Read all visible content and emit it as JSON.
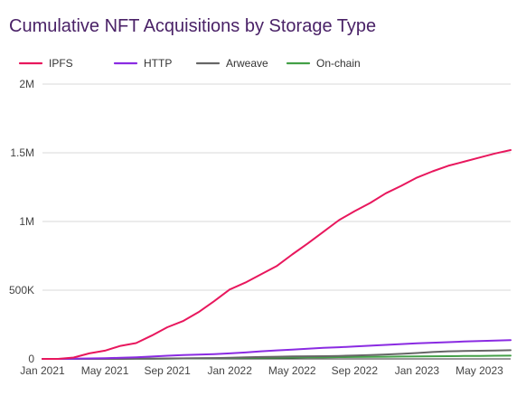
{
  "chart_data": {
    "type": "line",
    "title": "Cumulative NFT Acquisitions by Storage Type",
    "xlabel": "",
    "ylabel": "",
    "ylim": [
      0,
      2000000
    ],
    "y_ticks": [
      {
        "value": 0,
        "label": "0"
      },
      {
        "value": 500000,
        "label": "500K"
      },
      {
        "value": 1000000,
        "label": "1M"
      },
      {
        "value": 1500000,
        "label": "1.5M"
      },
      {
        "value": 2000000,
        "label": "2M"
      }
    ],
    "x_ticks": [
      "Jan 2021",
      "May 2021",
      "Sep 2021",
      "Jan 2022",
      "May 2022",
      "Sep 2022",
      "Jan 2023",
      "May 2023"
    ],
    "x": [
      "Jan 2021",
      "Feb 2021",
      "Mar 2021",
      "Apr 2021",
      "May 2021",
      "Jun 2021",
      "Jul 2021",
      "Aug 2021",
      "Sep 2021",
      "Oct 2021",
      "Nov 2021",
      "Dec 2021",
      "Jan 2022",
      "Feb 2022",
      "Mar 2022",
      "Apr 2022",
      "May 2022",
      "Jun 2022",
      "Jul 2022",
      "Aug 2022",
      "Sep 2022",
      "Oct 2022",
      "Nov 2022",
      "Dec 2022",
      "Jan 2023",
      "Feb 2023",
      "Mar 2023",
      "Apr 2023",
      "May 2023",
      "Jun 2023",
      "Jul 2023"
    ],
    "series": [
      {
        "name": "IPFS",
        "color": "#e8175d",
        "values": [
          0,
          0,
          10000,
          40000,
          60000,
          95000,
          115000,
          170000,
          230000,
          275000,
          340000,
          420000,
          505000,
          555000,
          615000,
          675000,
          760000,
          840000,
          925000,
          1010000,
          1075000,
          1135000,
          1205000,
          1260000,
          1320000,
          1365000,
          1405000,
          1435000,
          1465000,
          1495000,
          1520000
        ]
      },
      {
        "name": "HTTP",
        "color": "#8a2be2",
        "values": [
          0,
          0,
          1000,
          3000,
          5000,
          8000,
          12000,
          17000,
          23000,
          28000,
          31000,
          35000,
          40000,
          47000,
          55000,
          62000,
          68000,
          74000,
          80000,
          85000,
          90000,
          96000,
          102000,
          108000,
          113000,
          118000,
          122000,
          126000,
          130000,
          133000,
          137000
        ]
      },
      {
        "name": "Arweave",
        "color": "#666666",
        "values": [
          0,
          0,
          0,
          0,
          0,
          0,
          1000,
          2000,
          3000,
          4000,
          5000,
          6000,
          8000,
          11000,
          14000,
          16000,
          18000,
          19000,
          20000,
          22000,
          25000,
          28000,
          32000,
          37000,
          43000,
          50000,
          55000,
          57000,
          59000,
          61000,
          63000
        ]
      },
      {
        "name": "On-chain",
        "color": "#43a047",
        "values": [
          0,
          0,
          0,
          0,
          0,
          500,
          1000,
          1500,
          2000,
          3000,
          4000,
          5000,
          6000,
          7000,
          8000,
          9000,
          10000,
          11000,
          12000,
          13000,
          14000,
          15000,
          16000,
          17000,
          18000,
          19000,
          20000,
          21000,
          22000,
          23000,
          24000
        ]
      }
    ],
    "grid": {
      "horizontal": true,
      "vertical": false
    },
    "legend_position": "top-left"
  }
}
